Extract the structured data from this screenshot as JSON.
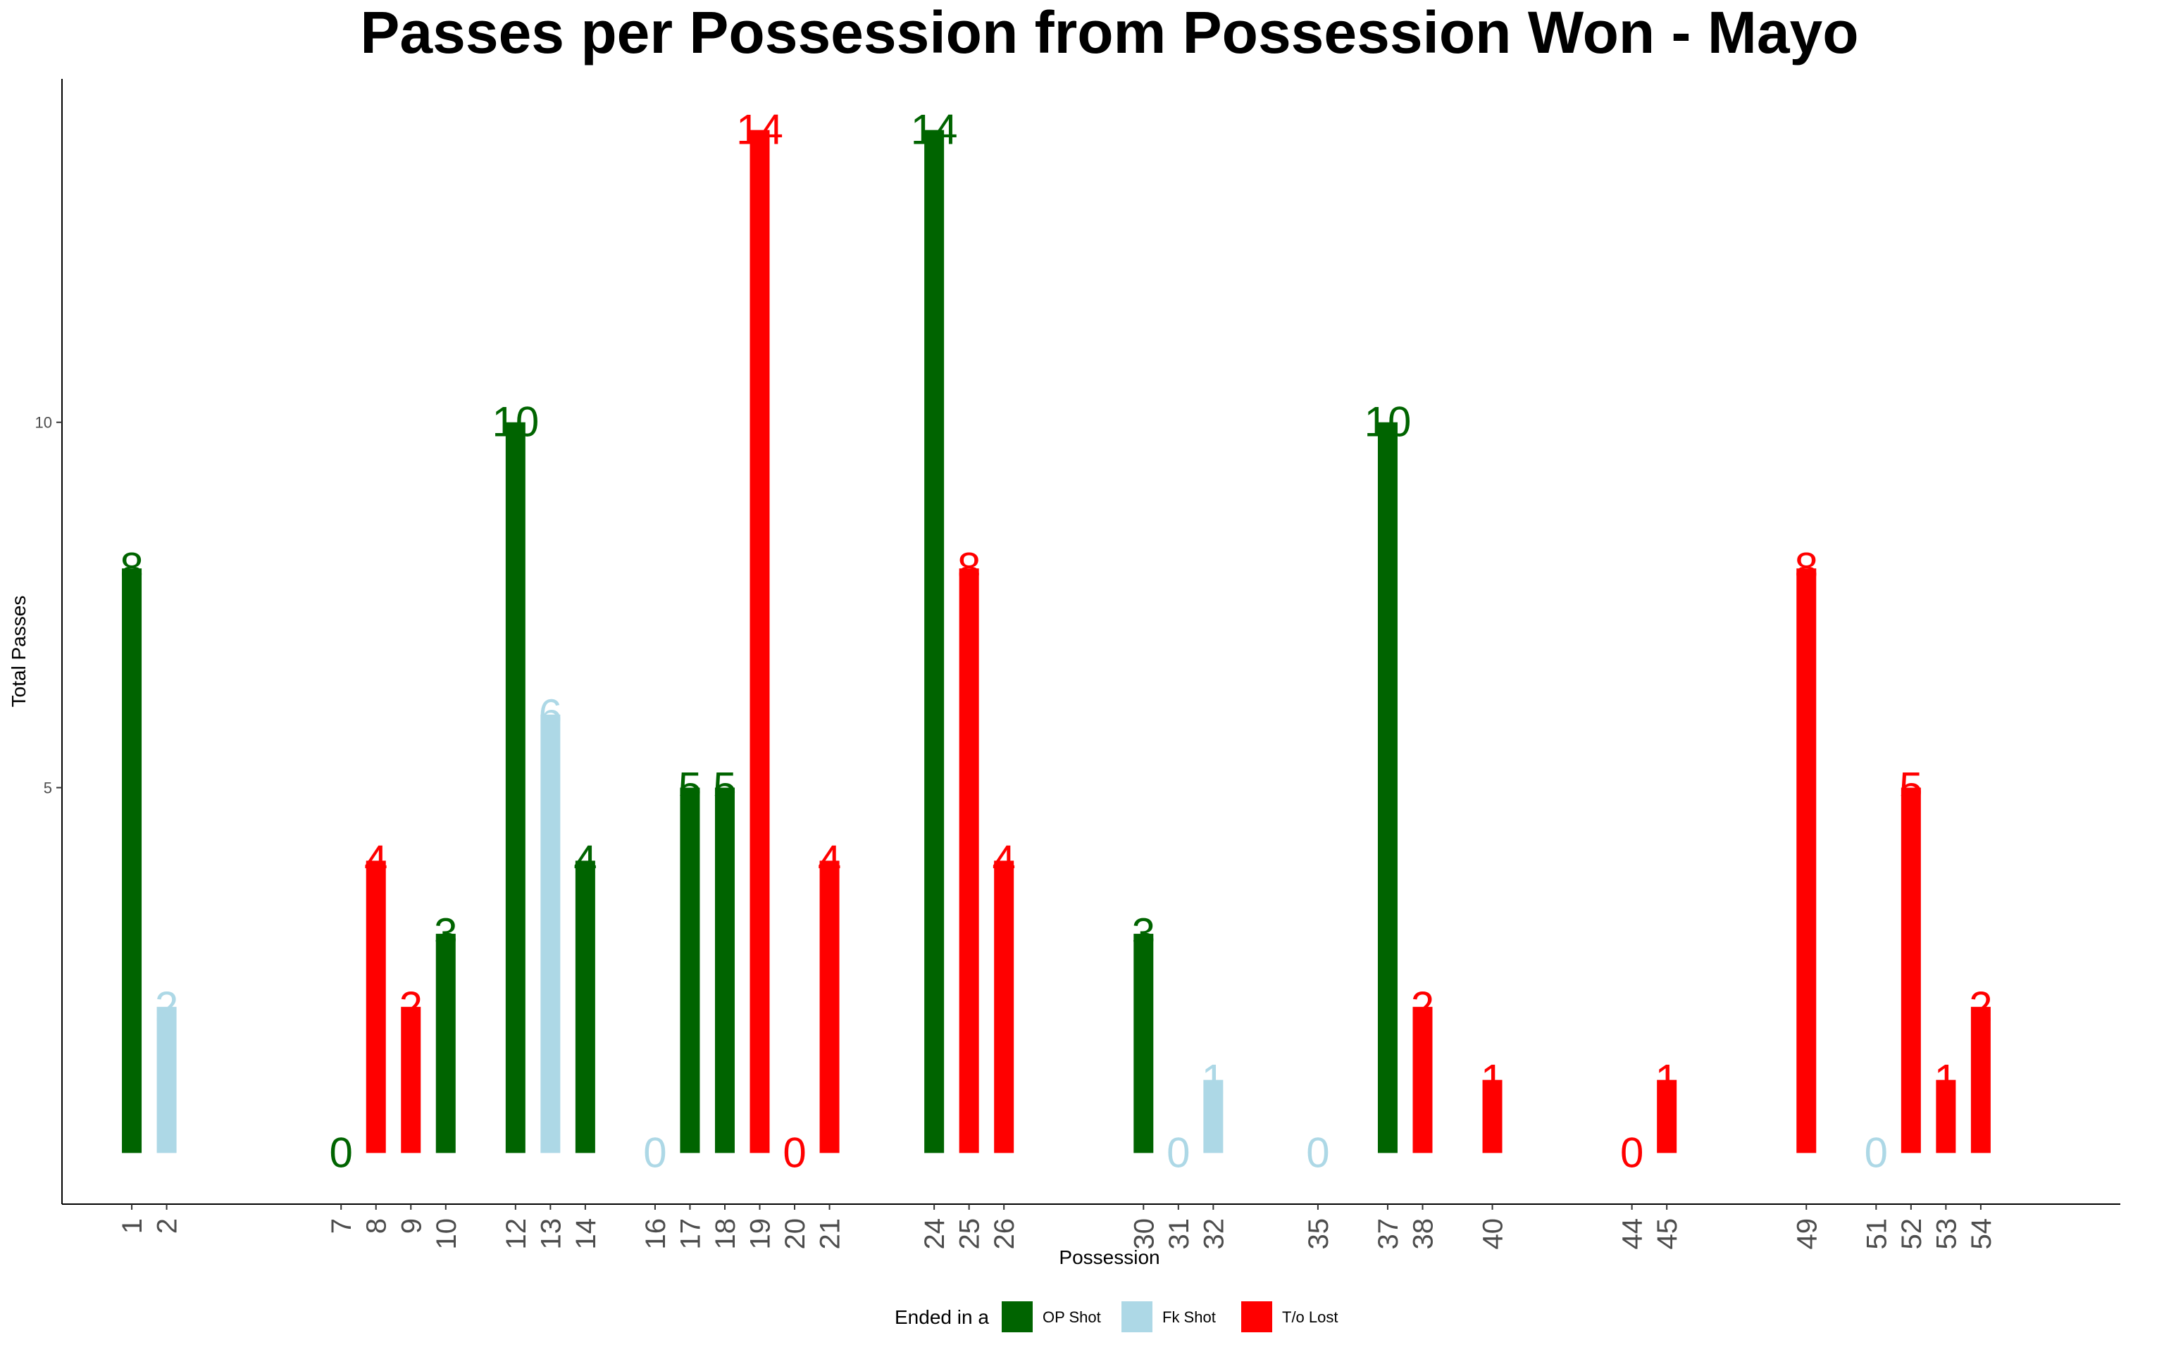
{
  "chart_data": {
    "type": "bar",
    "title": "Passes per Possession from Possession Won - Mayo",
    "xlabel": "Possession",
    "ylabel": "Total Passes",
    "x_range": [
      -1,
      58
    ],
    "ylim": [
      -0.7,
      14.7
    ],
    "yticks": [
      5,
      10
    ],
    "grid": false,
    "legend": {
      "position": "bottom",
      "title": "Ended in a",
      "entries": [
        {
          "key": "op",
          "label": "OP Shot",
          "color": "#006400"
        },
        {
          "key": "fk",
          "label": "Fk Shot",
          "color": "#ADD8E6"
        },
        {
          "key": "to",
          "label": "T/o Lost",
          "color": "#FF0000"
        }
      ]
    },
    "bars": [
      {
        "x": 1,
        "value": 8,
        "category": "op"
      },
      {
        "x": 2,
        "value": 2,
        "category": "fk"
      },
      {
        "x": 7,
        "value": 0,
        "category": "op"
      },
      {
        "x": 8,
        "value": 4,
        "category": "to"
      },
      {
        "x": 9,
        "value": 2,
        "category": "to"
      },
      {
        "x": 10,
        "value": 3,
        "category": "op"
      },
      {
        "x": 12,
        "value": 10,
        "category": "op"
      },
      {
        "x": 13,
        "value": 6,
        "category": "fk"
      },
      {
        "x": 14,
        "value": 4,
        "category": "op"
      },
      {
        "x": 16,
        "value": 0,
        "category": "fk"
      },
      {
        "x": 17,
        "value": 5,
        "category": "op"
      },
      {
        "x": 18,
        "value": 5,
        "category": "op"
      },
      {
        "x": 19,
        "value": 14,
        "category": "to"
      },
      {
        "x": 20,
        "value": 0,
        "category": "to"
      },
      {
        "x": 21,
        "value": 4,
        "category": "to"
      },
      {
        "x": 24,
        "value": 14,
        "category": "op"
      },
      {
        "x": 25,
        "value": 8,
        "category": "to"
      },
      {
        "x": 26,
        "value": 4,
        "category": "to"
      },
      {
        "x": 30,
        "value": 3,
        "category": "op"
      },
      {
        "x": 31,
        "value": 0,
        "category": "fk"
      },
      {
        "x": 32,
        "value": 1,
        "category": "fk"
      },
      {
        "x": 35,
        "value": 0,
        "category": "fk"
      },
      {
        "x": 37,
        "value": 10,
        "category": "op"
      },
      {
        "x": 38,
        "value": 2,
        "category": "to"
      },
      {
        "x": 40,
        "value": 1,
        "category": "to"
      },
      {
        "x": 44,
        "value": 0,
        "category": "to"
      },
      {
        "x": 45,
        "value": 1,
        "category": "to"
      },
      {
        "x": 49,
        "value": 8,
        "category": "to"
      },
      {
        "x": 51,
        "value": 0,
        "category": "fk"
      },
      {
        "x": 52,
        "value": 5,
        "category": "to"
      },
      {
        "x": 53,
        "value": 1,
        "category": "to"
      },
      {
        "x": 54,
        "value": 2,
        "category": "to"
      }
    ]
  }
}
